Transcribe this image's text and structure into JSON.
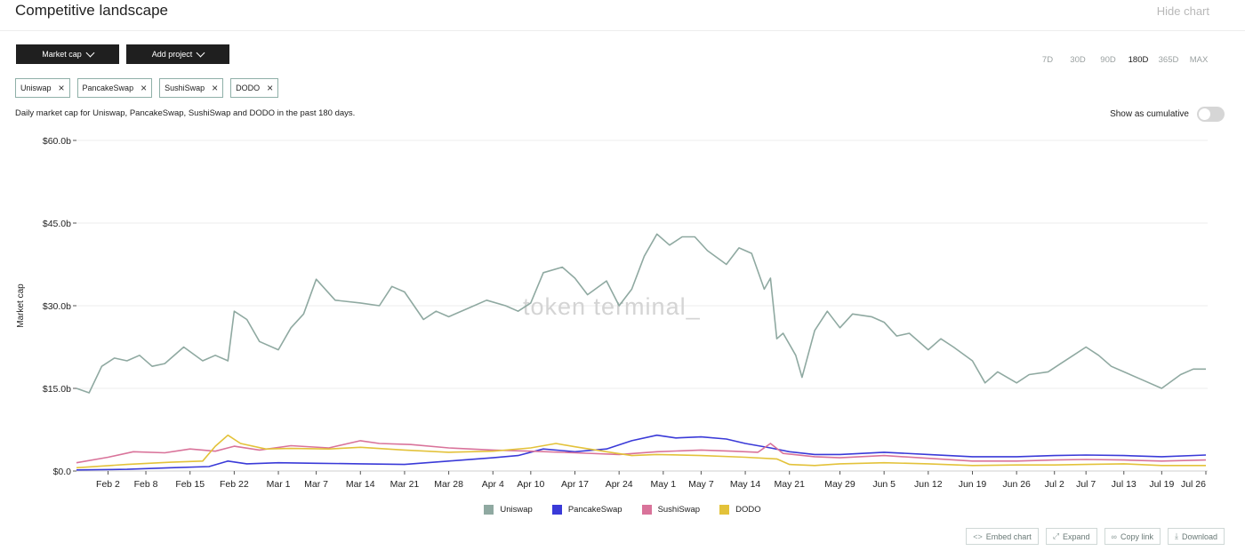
{
  "header": {
    "title": "Competitive landscape",
    "hide_label": "Hide chart"
  },
  "controls": {
    "metric_label": "Market cap",
    "add_project_label": "Add project",
    "ranges": [
      "7D",
      "30D",
      "90D",
      "180D",
      "365D",
      "MAX"
    ],
    "active_range": "180D"
  },
  "chips": [
    "Uniswap",
    "PancakeSwap",
    "SushiSwap",
    "DODO"
  ],
  "description": "Daily market cap for Uniswap, PancakeSwap, SushiSwap and DODO in the past 180 days.",
  "cumulative_label": "Show as cumulative",
  "watermark": "token terminal_",
  "actions": [
    {
      "label": "Embed chart",
      "icon": "code-icon",
      "glyph": "<>"
    },
    {
      "label": "Expand",
      "icon": "expand-icon",
      "glyph": "⤢"
    },
    {
      "label": "Copy link",
      "icon": "link-icon",
      "glyph": "∞"
    },
    {
      "label": "Download",
      "icon": "download-icon",
      "glyph": "⤓"
    }
  ],
  "chart_data": {
    "type": "line",
    "ylabel": "Market cap",
    "ylim": [
      0,
      60
    ],
    "yticks": [
      0,
      15,
      30,
      45,
      60
    ],
    "ytick_labels": [
      "$0.0",
      "$15.0b",
      "$30.0b",
      "$45.0b",
      "$60.0b"
    ],
    "grid": true,
    "legend_position": "bottom-center",
    "x_start": "2021-01-28",
    "x_end": "2021-07-26",
    "x_ticks": [
      {
        "date": "2021-02-02",
        "label": "Feb 2"
      },
      {
        "date": "2021-02-08",
        "label": "Feb 8"
      },
      {
        "date": "2021-02-15",
        "label": "Feb 15"
      },
      {
        "date": "2021-02-22",
        "label": "Feb 22"
      },
      {
        "date": "2021-03-01",
        "label": "Mar 1"
      },
      {
        "date": "2021-03-07",
        "label": "Mar 7"
      },
      {
        "date": "2021-03-14",
        "label": "Mar 14"
      },
      {
        "date": "2021-03-21",
        "label": "Mar 21"
      },
      {
        "date": "2021-03-28",
        "label": "Mar 28"
      },
      {
        "date": "2021-04-04",
        "label": "Apr 4"
      },
      {
        "date": "2021-04-10",
        "label": "Apr 10"
      },
      {
        "date": "2021-04-17",
        "label": "Apr 17"
      },
      {
        "date": "2021-04-24",
        "label": "Apr 24"
      },
      {
        "date": "2021-05-01",
        "label": "May 1"
      },
      {
        "date": "2021-05-07",
        "label": "May 7"
      },
      {
        "date": "2021-05-14",
        "label": "May 14"
      },
      {
        "date": "2021-05-21",
        "label": "May 21"
      },
      {
        "date": "2021-05-29",
        "label": "May 29"
      },
      {
        "date": "2021-06-05",
        "label": "Jun 5"
      },
      {
        "date": "2021-06-12",
        "label": "Jun 12"
      },
      {
        "date": "2021-06-19",
        "label": "Jun 19"
      },
      {
        "date": "2021-06-26",
        "label": "Jun 26"
      },
      {
        "date": "2021-07-02",
        "label": "Jul 2"
      },
      {
        "date": "2021-07-07",
        "label": "Jul 7"
      },
      {
        "date": "2021-07-13",
        "label": "Jul 13"
      },
      {
        "date": "2021-07-19",
        "label": "Jul 19"
      },
      {
        "date": "2021-07-26",
        "label": "Jul 26"
      }
    ],
    "series": [
      {
        "name": "Uniswap",
        "color": "#8fa9a1",
        "points": [
          [
            "2021-01-28",
            15.0
          ],
          [
            "2021-01-30",
            14.2
          ],
          [
            "2021-02-01",
            19.0
          ],
          [
            "2021-02-03",
            20.5
          ],
          [
            "2021-02-05",
            20.0
          ],
          [
            "2021-02-07",
            21.0
          ],
          [
            "2021-02-09",
            19.0
          ],
          [
            "2021-02-11",
            19.5
          ],
          [
            "2021-02-14",
            22.5
          ],
          [
            "2021-02-17",
            20.0
          ],
          [
            "2021-02-19",
            21.0
          ],
          [
            "2021-02-21",
            20.0
          ],
          [
            "2021-02-22",
            29.0
          ],
          [
            "2021-02-24",
            27.5
          ],
          [
            "2021-02-26",
            23.5
          ],
          [
            "2021-03-01",
            22.0
          ],
          [
            "2021-03-03",
            26.0
          ],
          [
            "2021-03-05",
            28.5
          ],
          [
            "2021-03-07",
            34.8
          ],
          [
            "2021-03-10",
            31.0
          ],
          [
            "2021-03-14",
            30.5
          ],
          [
            "2021-03-17",
            30.0
          ],
          [
            "2021-03-19",
            33.5
          ],
          [
            "2021-03-21",
            32.5
          ],
          [
            "2021-03-24",
            27.5
          ],
          [
            "2021-03-26",
            29.0
          ],
          [
            "2021-03-28",
            28.0
          ],
          [
            "2021-03-31",
            29.5
          ],
          [
            "2021-04-03",
            31.0
          ],
          [
            "2021-04-06",
            30.0
          ],
          [
            "2021-04-08",
            29.0
          ],
          [
            "2021-04-10",
            30.5
          ],
          [
            "2021-04-12",
            36.0
          ],
          [
            "2021-04-15",
            37.0
          ],
          [
            "2021-04-17",
            35.0
          ],
          [
            "2021-04-19",
            32.0
          ],
          [
            "2021-04-22",
            34.5
          ],
          [
            "2021-04-24",
            30.0
          ],
          [
            "2021-04-26",
            33.0
          ],
          [
            "2021-04-28",
            39.0
          ],
          [
            "2021-04-30",
            43.0
          ],
          [
            "2021-05-02",
            41.0
          ],
          [
            "2021-05-04",
            42.5
          ],
          [
            "2021-05-06",
            42.5
          ],
          [
            "2021-05-08",
            40.0
          ],
          [
            "2021-05-11",
            37.5
          ],
          [
            "2021-05-13",
            40.5
          ],
          [
            "2021-05-15",
            39.5
          ],
          [
            "2021-05-17",
            33.0
          ],
          [
            "2021-05-18",
            35.0
          ],
          [
            "2021-05-19",
            24.0
          ],
          [
            "2021-05-20",
            25.0
          ],
          [
            "2021-05-22",
            21.0
          ],
          [
            "2021-05-23",
            17.0
          ],
          [
            "2021-05-25",
            25.5
          ],
          [
            "2021-05-27",
            29.0
          ],
          [
            "2021-05-29",
            26.0
          ],
          [
            "2021-05-31",
            28.5
          ],
          [
            "2021-06-03",
            28.0
          ],
          [
            "2021-06-05",
            27.0
          ],
          [
            "2021-06-07",
            24.5
          ],
          [
            "2021-06-09",
            25.0
          ],
          [
            "2021-06-12",
            22.0
          ],
          [
            "2021-06-14",
            24.0
          ],
          [
            "2021-06-16",
            22.5
          ],
          [
            "2021-06-19",
            20.0
          ],
          [
            "2021-06-21",
            16.0
          ],
          [
            "2021-06-23",
            18.0
          ],
          [
            "2021-06-26",
            16.0
          ],
          [
            "2021-06-28",
            17.5
          ],
          [
            "2021-07-01",
            18.0
          ],
          [
            "2021-07-03",
            19.5
          ],
          [
            "2021-07-05",
            21.0
          ],
          [
            "2021-07-07",
            22.5
          ],
          [
            "2021-07-09",
            21.0
          ],
          [
            "2021-07-11",
            19.0
          ],
          [
            "2021-07-13",
            18.0
          ],
          [
            "2021-07-16",
            16.5
          ],
          [
            "2021-07-19",
            15.0
          ],
          [
            "2021-07-22",
            17.5
          ],
          [
            "2021-07-24",
            18.5
          ],
          [
            "2021-07-26",
            18.5
          ]
        ]
      },
      {
        "name": "PancakeSwap",
        "color": "#3a3ad8",
        "points": [
          [
            "2021-01-28",
            0.2
          ],
          [
            "2021-02-05",
            0.3
          ],
          [
            "2021-02-12",
            0.6
          ],
          [
            "2021-02-18",
            0.8
          ],
          [
            "2021-02-21",
            1.8
          ],
          [
            "2021-02-24",
            1.3
          ],
          [
            "2021-03-01",
            1.5
          ],
          [
            "2021-03-07",
            1.4
          ],
          [
            "2021-03-14",
            1.3
          ],
          [
            "2021-03-21",
            1.2
          ],
          [
            "2021-03-28",
            1.8
          ],
          [
            "2021-04-04",
            2.4
          ],
          [
            "2021-04-08",
            2.8
          ],
          [
            "2021-04-12",
            4.0
          ],
          [
            "2021-04-17",
            3.5
          ],
          [
            "2021-04-22",
            4.0
          ],
          [
            "2021-04-26",
            5.5
          ],
          [
            "2021-04-30",
            6.5
          ],
          [
            "2021-05-03",
            6.0
          ],
          [
            "2021-05-07",
            6.2
          ],
          [
            "2021-05-11",
            5.8
          ],
          [
            "2021-05-14",
            5.0
          ],
          [
            "2021-05-18",
            4.2
          ],
          [
            "2021-05-21",
            3.5
          ],
          [
            "2021-05-25",
            3.0
          ],
          [
            "2021-05-29",
            3.0
          ],
          [
            "2021-06-05",
            3.4
          ],
          [
            "2021-06-12",
            3.0
          ],
          [
            "2021-06-19",
            2.6
          ],
          [
            "2021-06-26",
            2.6
          ],
          [
            "2021-07-02",
            2.8
          ],
          [
            "2021-07-07",
            2.9
          ],
          [
            "2021-07-13",
            2.8
          ],
          [
            "2021-07-19",
            2.6
          ],
          [
            "2021-07-26",
            2.9
          ]
        ]
      },
      {
        "name": "SushiSwap",
        "color": "#d9739a",
        "points": [
          [
            "2021-01-28",
            1.5
          ],
          [
            "2021-02-02",
            2.5
          ],
          [
            "2021-02-06",
            3.5
          ],
          [
            "2021-02-11",
            3.3
          ],
          [
            "2021-02-15",
            4.0
          ],
          [
            "2021-02-19",
            3.6
          ],
          [
            "2021-02-22",
            4.5
          ],
          [
            "2021-02-26",
            3.8
          ],
          [
            "2021-03-03",
            4.6
          ],
          [
            "2021-03-09",
            4.2
          ],
          [
            "2021-03-14",
            5.5
          ],
          [
            "2021-03-17",
            5.0
          ],
          [
            "2021-03-22",
            4.8
          ],
          [
            "2021-03-28",
            4.2
          ],
          [
            "2021-04-04",
            3.8
          ],
          [
            "2021-04-10",
            3.6
          ],
          [
            "2021-04-17",
            3.3
          ],
          [
            "2021-04-24",
            3.0
          ],
          [
            "2021-04-30",
            3.5
          ],
          [
            "2021-05-07",
            3.8
          ],
          [
            "2021-05-12",
            3.6
          ],
          [
            "2021-05-16",
            3.4
          ],
          [
            "2021-05-18",
            5.0
          ],
          [
            "2021-05-20",
            3.2
          ],
          [
            "2021-05-25",
            2.6
          ],
          [
            "2021-05-29",
            2.4
          ],
          [
            "2021-06-05",
            2.8
          ],
          [
            "2021-06-12",
            2.3
          ],
          [
            "2021-06-19",
            1.8
          ],
          [
            "2021-06-26",
            1.8
          ],
          [
            "2021-07-02",
            2.0
          ],
          [
            "2021-07-07",
            2.1
          ],
          [
            "2021-07-13",
            2.0
          ],
          [
            "2021-07-19",
            1.8
          ],
          [
            "2021-07-26",
            2.0
          ]
        ]
      },
      {
        "name": "DODO",
        "color": "#e3c23a",
        "points": [
          [
            "2021-01-28",
            0.6
          ],
          [
            "2021-02-05",
            1.2
          ],
          [
            "2021-02-12",
            1.6
          ],
          [
            "2021-02-17",
            1.8
          ],
          [
            "2021-02-19",
            4.5
          ],
          [
            "2021-02-21",
            6.5
          ],
          [
            "2021-02-23",
            5.0
          ],
          [
            "2021-02-27",
            4.0
          ],
          [
            "2021-03-03",
            4.1
          ],
          [
            "2021-03-09",
            4.0
          ],
          [
            "2021-03-14",
            4.3
          ],
          [
            "2021-03-21",
            3.8
          ],
          [
            "2021-03-28",
            3.4
          ],
          [
            "2021-04-04",
            3.6
          ],
          [
            "2021-04-10",
            4.2
          ],
          [
            "2021-04-14",
            5.0
          ],
          [
            "2021-04-17",
            4.4
          ],
          [
            "2021-04-22",
            3.5
          ],
          [
            "2021-04-26",
            2.8
          ],
          [
            "2021-04-30",
            3.0
          ],
          [
            "2021-05-07",
            2.8
          ],
          [
            "2021-05-14",
            2.5
          ],
          [
            "2021-05-19",
            2.2
          ],
          [
            "2021-05-21",
            1.2
          ],
          [
            "2021-05-25",
            1.0
          ],
          [
            "2021-05-29",
            1.3
          ],
          [
            "2021-06-05",
            1.5
          ],
          [
            "2021-06-12",
            1.3
          ],
          [
            "2021-06-19",
            1.0
          ],
          [
            "2021-06-26",
            1.1
          ],
          [
            "2021-07-02",
            1.1
          ],
          [
            "2021-07-07",
            1.2
          ],
          [
            "2021-07-13",
            1.3
          ],
          [
            "2021-07-19",
            1.0
          ],
          [
            "2021-07-26",
            1.0
          ]
        ]
      }
    ]
  }
}
